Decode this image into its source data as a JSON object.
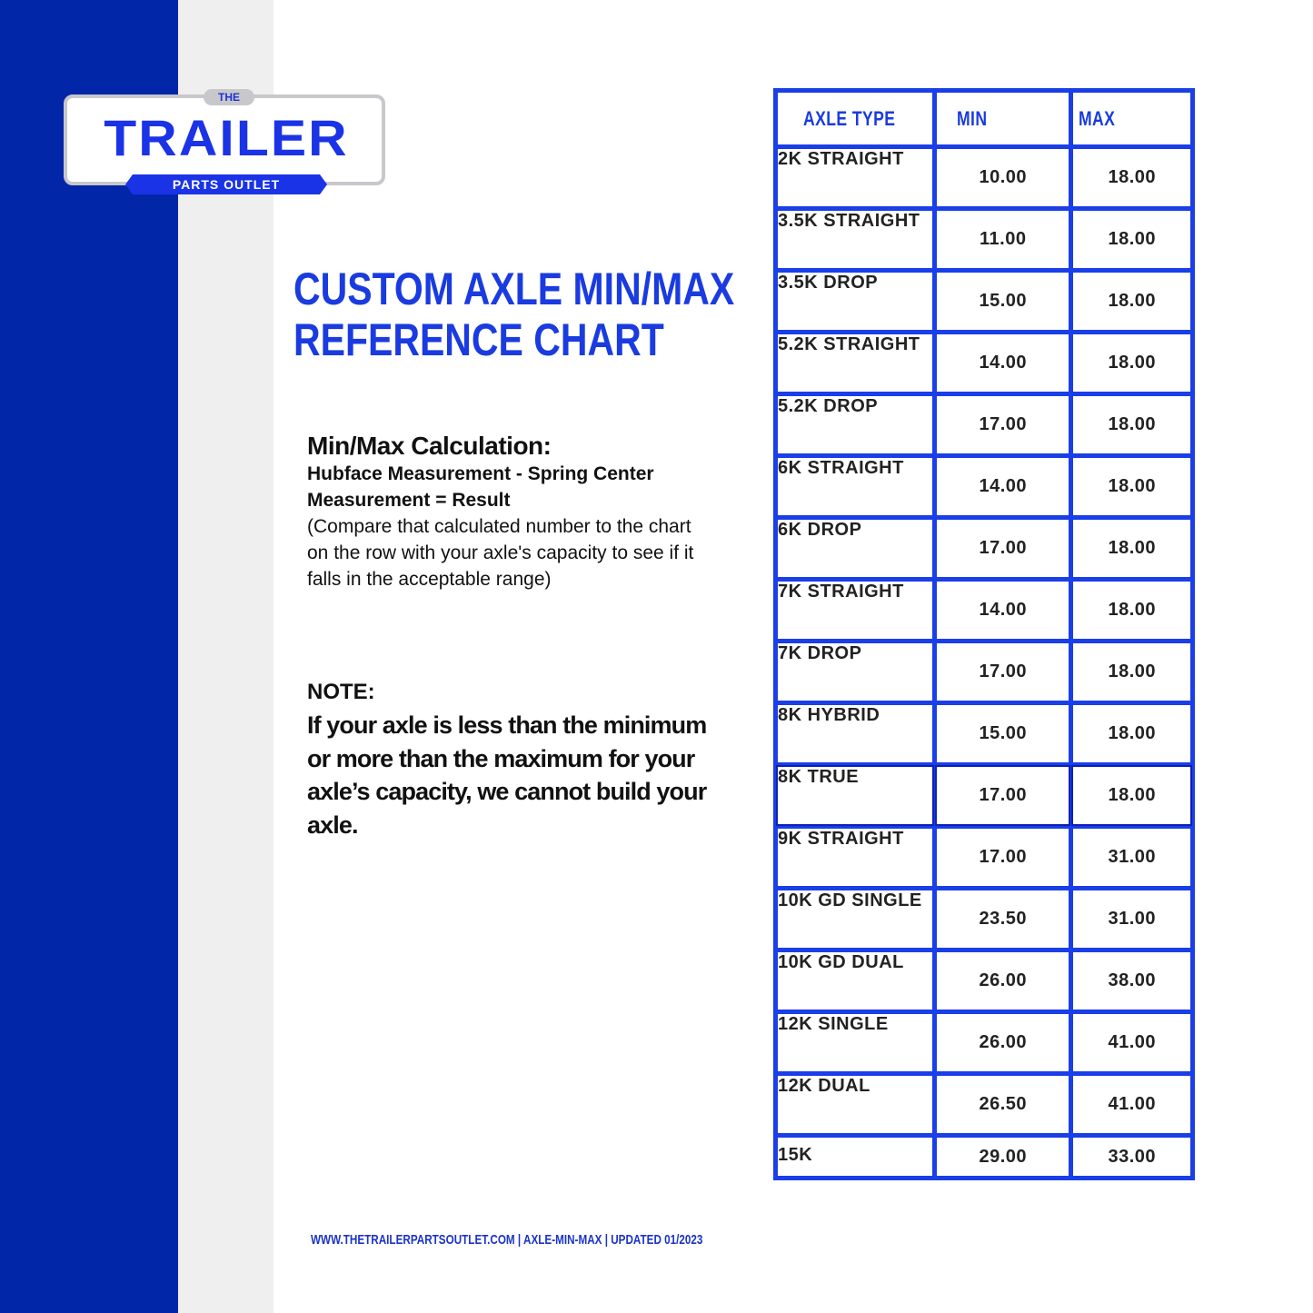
{
  "logo": {
    "the": "THE",
    "main": "TRAILER",
    "sub": "PARTS OUTLET"
  },
  "title": {
    "line1": "CUSTOM AXLE MIN/MAX",
    "line2": "REFERENCE CHART"
  },
  "calculation": {
    "heading": "Min/Max Calculation:",
    "formula": "Hubface Measurement - Spring Center Measurement = Result",
    "explanation": "(Compare that calculated number to the chart on the row with your axle's capacity to see if it falls in the acceptable range)"
  },
  "note": {
    "heading": "NOTE:",
    "text": "If your axle is less than the minimum or more than the maximum for your axle’s capacity, we cannot build your axle."
  },
  "footer": "WWW.THETRAILERPARTSOUTLET.COM   | AXLE-MIN-MAX | UPDATED 01/2023",
  "colors": {
    "brand_blue": "#0226a8",
    "accent": "#1a3ee8"
  },
  "table": {
    "headers": [
      "AXLE TYPE",
      "MIN",
      "MAX"
    ],
    "rows": [
      {
        "type": "2K STRAIGHT",
        "min": "10.00",
        "max": "18.00"
      },
      {
        "type": "3.5K STRAIGHT",
        "min": "11.00",
        "max": "18.00"
      },
      {
        "type": "3.5K DROP",
        "min": "15.00",
        "max": "18.00"
      },
      {
        "type": "5.2K STRAIGHT",
        "min": "14.00",
        "max": "18.00"
      },
      {
        "type": "5.2K DROP",
        "min": "17.00",
        "max": "18.00"
      },
      {
        "type": "6K STRAIGHT",
        "min": "14.00",
        "max": "18.00"
      },
      {
        "type": "6K DROP",
        "min": "17.00",
        "max": "18.00"
      },
      {
        "type": "7K STRAIGHT",
        "min": "14.00",
        "max": "18.00"
      },
      {
        "type": "7K DROP",
        "min": "17.00",
        "max": "18.00"
      },
      {
        "type": "8K HYBRID",
        "min": "15.00",
        "max": "18.00"
      },
      {
        "type": "8K TRUE",
        "min": "17.00",
        "max": "18.00"
      },
      {
        "type": "9K STRAIGHT",
        "min": "17.00",
        "max": "31.00"
      },
      {
        "type": "10K GD SINGLE",
        "min": "23.50",
        "max": "31.00"
      },
      {
        "type": "10K GD DUAL",
        "min": "26.00",
        "max": "38.00"
      },
      {
        "type": "12K SINGLE",
        "min": "26.00",
        "max": "41.00"
      },
      {
        "type": "12K DUAL",
        "min": "26.50",
        "max": "41.00"
      },
      {
        "type": "15K",
        "min": "29.00",
        "max": "33.00"
      }
    ]
  }
}
